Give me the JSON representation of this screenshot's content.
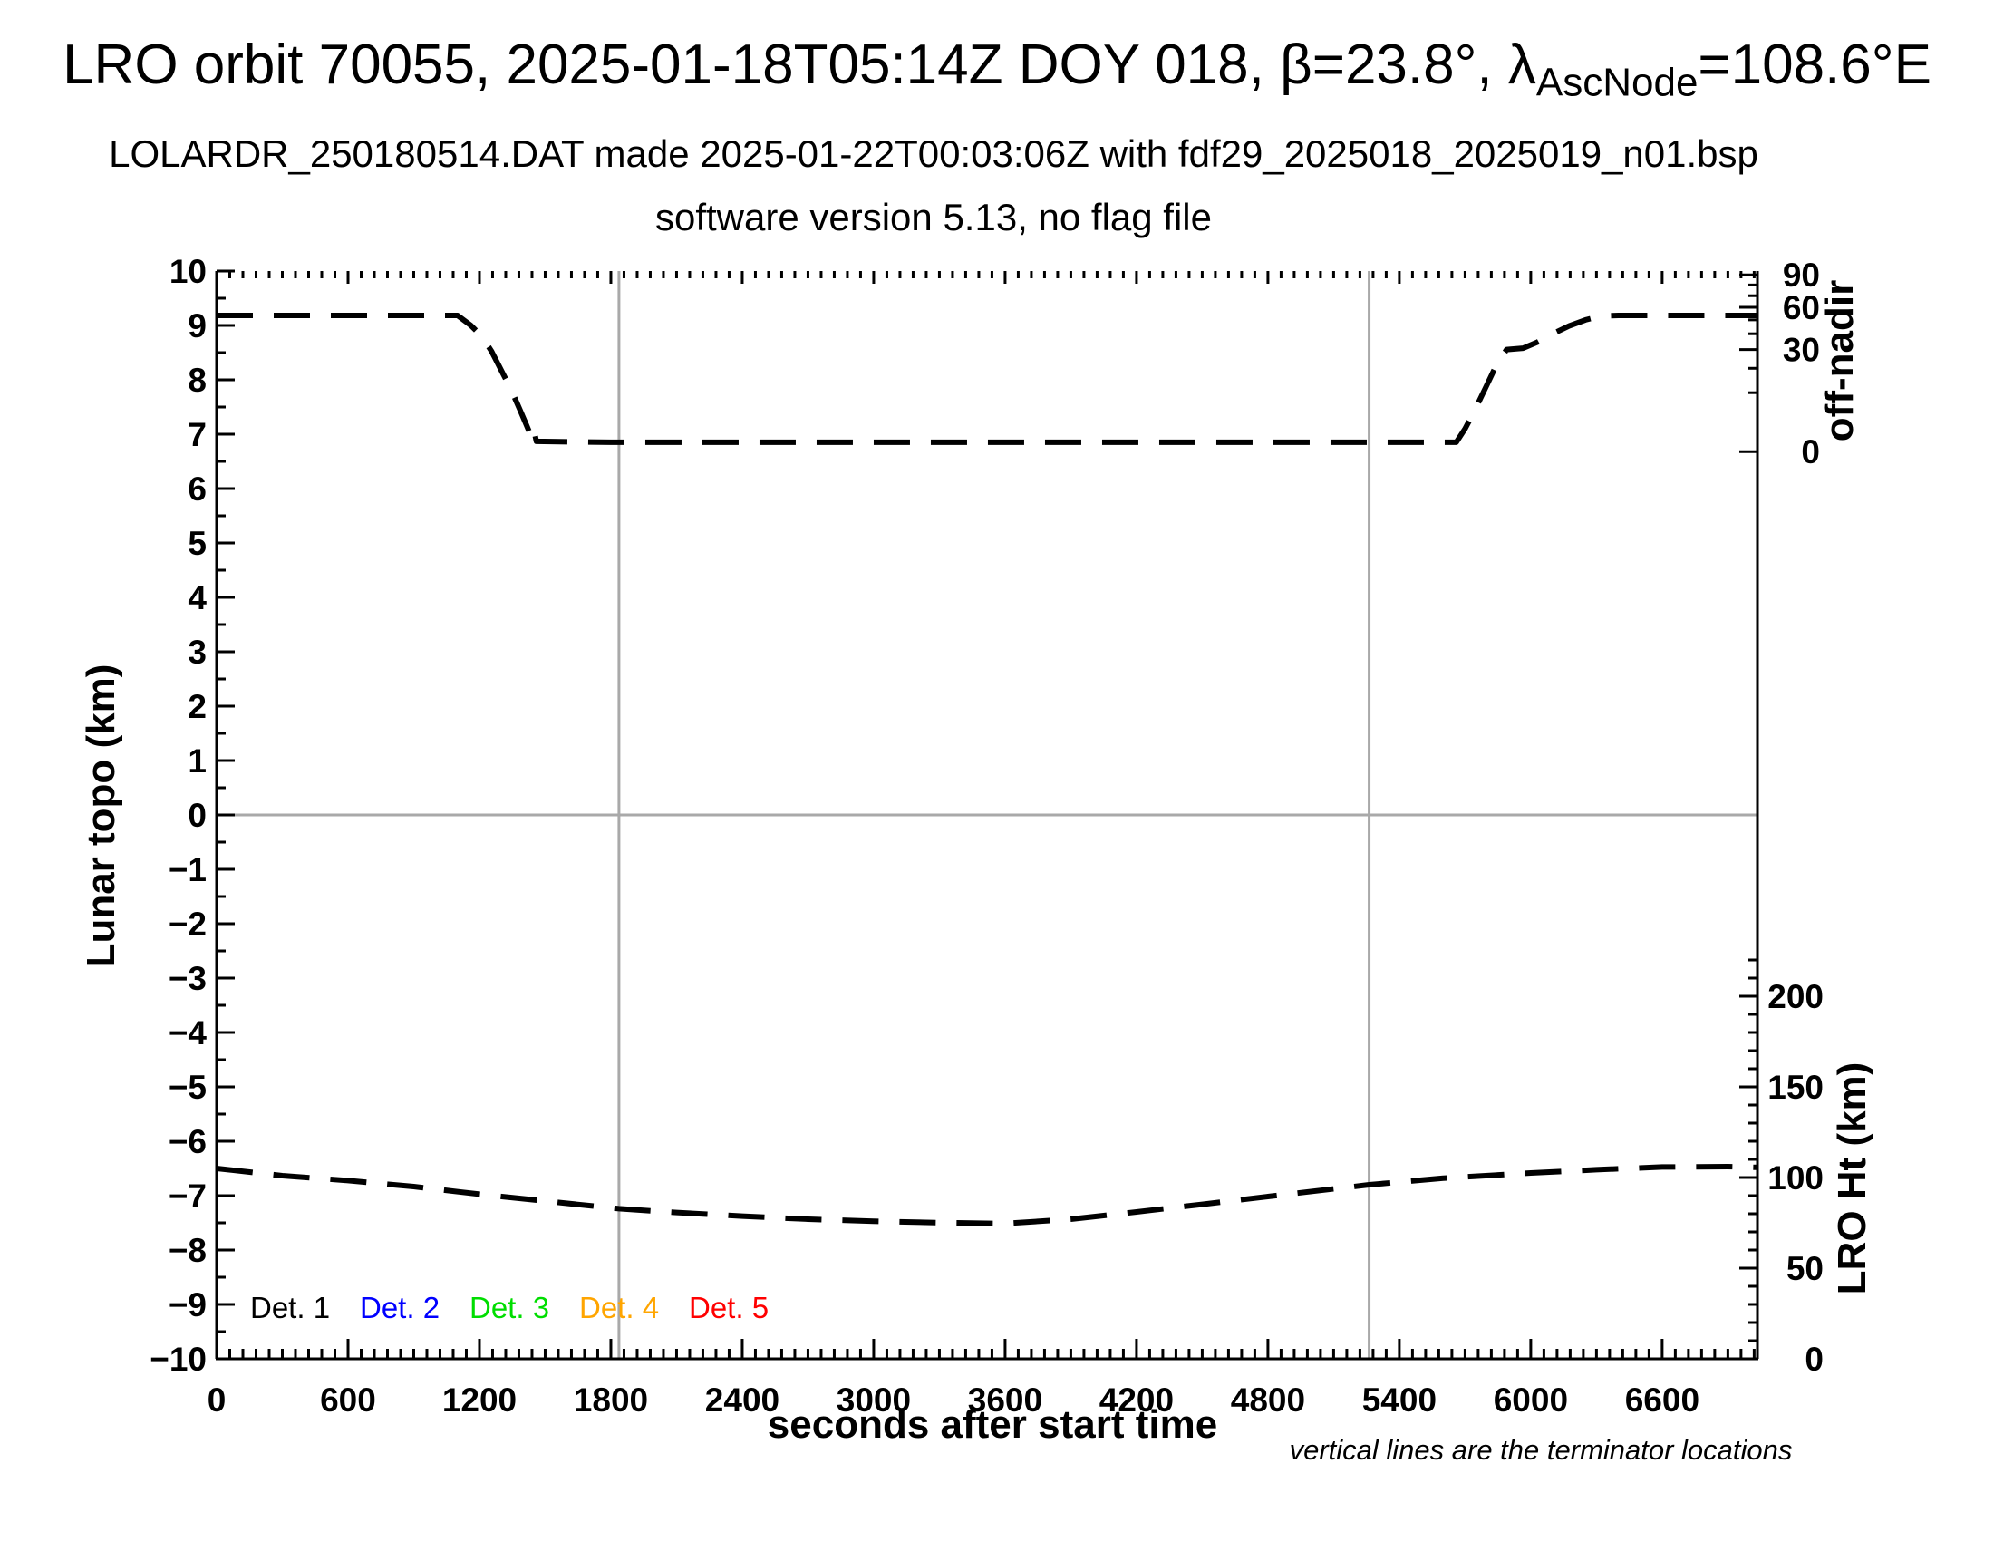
{
  "header": {
    "title_prefix": "LRO orbit 70055, 2025-01-18T05:14Z DOY 018, β=23.8°, λ",
    "title_subscript": "AscNode",
    "title_suffix": "=108.6°E",
    "subtitle1": "LOLARDR_250180514.DAT made 2025-01-22T00:03:06Z with fdf29_2025018_2025019_n01.bsp",
    "subtitle2": "software version 5.13, no flag file"
  },
  "footnote": "vertical lines are the terminator locations",
  "legend": {
    "items": [
      {
        "label": "Det. 1",
        "color": "#000000"
      },
      {
        "label": "Det. 2",
        "color": "#0000ff"
      },
      {
        "label": "Det. 3",
        "color": "#00dd00"
      },
      {
        "label": "Det. 4",
        "color": "#ffa500"
      },
      {
        "label": "Det. 5",
        "color": "#ff0000"
      }
    ]
  },
  "chart_data": {
    "type": "line",
    "title": "LRO orbit 70055, 2025-01-18T05:14Z DOY 018, beta=23.8 deg, lambda_AscNode=108.6E",
    "xlabel": "seconds after start time",
    "ylabel_left": "Lunar topo (km)",
    "ylabel_right_top": "off-nadir",
    "ylabel_right_bottom": "LRO Ht (km)",
    "x_range": [
      0,
      7035
    ],
    "y_left_range": [
      -10,
      10
    ],
    "x_major_tick_step": 600,
    "x_minor_tick_step": 60,
    "x_major_tick_labels": [
      0,
      600,
      1200,
      1800,
      2400,
      3000,
      3600,
      4200,
      4800,
      5400,
      6000,
      6600
    ],
    "y_left_major_tick_step": 1,
    "y_left_minor_tick_step": 0.5,
    "off_nadir_axis": {
      "units": "deg",
      "major_ticks_deg": [
        90,
        60,
        30,
        0
      ],
      "minor_ticks_deg": [
        80,
        70,
        50,
        40,
        20,
        10
      ],
      "map_offset": 6.68,
      "map_scale": 3.25,
      "map_rule": "left_axis_units = offset + scale*sqrt(deg/90)"
    },
    "lro_ht_axis": {
      "units": "km",
      "major_ticks_km": [
        0,
        50,
        100,
        150,
        200
      ],
      "minor_step_km": 10,
      "minor_max_km": 220,
      "map_rule": "left_axis_units = km/30 - 10"
    },
    "zero_line_topo_km": 0,
    "terminator_lines_sec": [
      1837,
      5262
    ],
    "grid": "off",
    "legend_position": "inside bottom-left",
    "series": [
      {
        "name": "spacecraft off-nadir angle",
        "axis": "right-top",
        "units": "deg",
        "style": "black dashed",
        "points": [
          [
            0,
            53.4
          ],
          [
            300,
            53.4
          ],
          [
            600,
            53.4
          ],
          [
            900,
            53.4
          ],
          [
            1100,
            53.4
          ],
          [
            1160,
            46
          ],
          [
            1210,
            38.5
          ],
          [
            1255,
            29
          ],
          [
            1300,
            19
          ],
          [
            1345,
            11
          ],
          [
            1385,
            5
          ],
          [
            1415,
            2
          ],
          [
            1440,
            0.5
          ],
          [
            1450,
            1.2
          ],
          [
            1460,
            0.3
          ],
          [
            1800,
            0.25
          ],
          [
            2400,
            0.25
          ],
          [
            3000,
            0.25
          ],
          [
            3600,
            0.25
          ],
          [
            4200,
            0.25
          ],
          [
            4800,
            0.25
          ],
          [
            5400,
            0.25
          ],
          [
            5660,
            0.25
          ],
          [
            5700,
            1.5
          ],
          [
            5745,
            5
          ],
          [
            5795,
            12
          ],
          [
            5845,
            22
          ],
          [
            5890,
            30
          ],
          [
            5965,
            30.8
          ],
          [
            6030,
            34.5
          ],
          [
            6100,
            40
          ],
          [
            6175,
            45.5
          ],
          [
            6250,
            50
          ],
          [
            6320,
            53
          ],
          [
            6400,
            53.4
          ],
          [
            6700,
            53.4
          ],
          [
            7030,
            53.4
          ]
        ]
      },
      {
        "name": "LRO height above surface",
        "axis": "right-bottom",
        "units": "km",
        "style": "black dashed",
        "points": [
          [
            0,
            105
          ],
          [
            300,
            101
          ],
          [
            600,
            98.3
          ],
          [
            900,
            95
          ],
          [
            1200,
            90.8
          ],
          [
            1500,
            87
          ],
          [
            1837,
            82.8
          ],
          [
            2100,
            80.7
          ],
          [
            2400,
            78.7
          ],
          [
            2700,
            77
          ],
          [
            3000,
            75.9
          ],
          [
            3300,
            75.1
          ],
          [
            3600,
            74.6
          ],
          [
            3900,
            77
          ],
          [
            4200,
            81
          ],
          [
            4500,
            85.2
          ],
          [
            4800,
            89.5
          ],
          [
            5262,
            96
          ],
          [
            5600,
            99.6
          ],
          [
            6000,
            102.5
          ],
          [
            6300,
            104.3
          ],
          [
            6600,
            105.8
          ],
          [
            6900,
            106
          ],
          [
            7030,
            105.6
          ]
        ]
      }
    ]
  }
}
